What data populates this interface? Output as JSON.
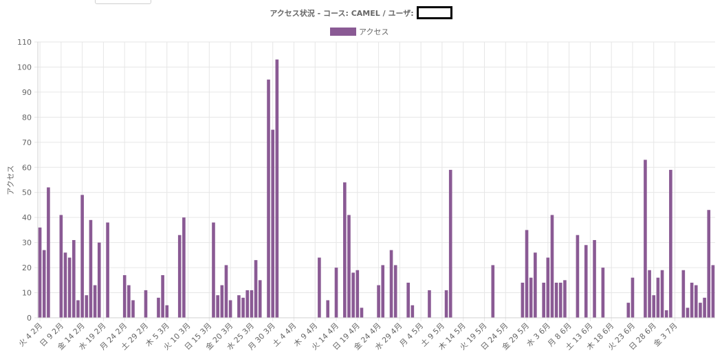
{
  "title": {
    "text": "アクセス状況 - コース: CAMEL / ユーザ:"
  },
  "colors": {
    "bar": "#8a5a94",
    "grid": "#e6e6e6",
    "text": "#666666"
  },
  "chart_data": {
    "type": "bar",
    "title": "アクセス状況 - コース: CAMEL / ユーザ:",
    "ylabel": "アクセス",
    "xlabel": "",
    "ylim": [
      0,
      110
    ],
    "yticks": [
      0,
      10,
      20,
      30,
      40,
      50,
      60,
      70,
      80,
      90,
      100,
      110
    ],
    "legend": {
      "position": "top",
      "entries": [
        "アクセス"
      ]
    },
    "grid": true,
    "x_tick_labels": [
      "火 4 2月",
      "日 9 2月",
      "金 14 2月",
      "水 19 2月",
      "月 24 2月",
      "土 29 2月",
      "木 5 3月",
      "火 10 3月",
      "日 15 3月",
      "金 20 3月",
      "水 25 3月",
      "月 30 3月",
      "土 4 4月",
      "木 9 4月",
      "火 14 4月",
      "日 19 4月",
      "金 24 4月",
      "水 29 4月",
      "月 4 5月",
      "土 9 5月",
      "木 14 5月",
      "火 19 5月",
      "日 24 5月",
      "金 29 5月",
      "水 3 6月",
      "月 8 6月",
      "土 13 6月",
      "木 18 6月",
      "火 23 6月",
      "日 28 6月",
      "金 3 7月"
    ],
    "series": [
      {
        "name": "アクセス",
        "start_date": "2020-02-04",
        "values": [
          36,
          27,
          52,
          0,
          0,
          41,
          26,
          24,
          31,
          7,
          49,
          9,
          39,
          13,
          30,
          0,
          38,
          0,
          0,
          0,
          17,
          13,
          7,
          0,
          0,
          11,
          0,
          0,
          8,
          17,
          5,
          0,
          0,
          33,
          40,
          0,
          0,
          0,
          0,
          0,
          0,
          38,
          9,
          13,
          21,
          7,
          0,
          9,
          8,
          11,
          11,
          23,
          15,
          0,
          95,
          75,
          103,
          0,
          0,
          0,
          0,
          0,
          0,
          0,
          0,
          0,
          24,
          0,
          7,
          0,
          20,
          0,
          54,
          41,
          18,
          19,
          4,
          0,
          0,
          0,
          13,
          21,
          0,
          27,
          21,
          0,
          0,
          14,
          5,
          0,
          0,
          0,
          11,
          0,
          0,
          0,
          11,
          59,
          0,
          0,
          0,
          0,
          0,
          0,
          0,
          0,
          0,
          21,
          0,
          0,
          0,
          0,
          0,
          0,
          14,
          35,
          16,
          26,
          0,
          14,
          24,
          41,
          14,
          14,
          15,
          0,
          0,
          33,
          0,
          29,
          0,
          31,
          0,
          20,
          0,
          0,
          0,
          0,
          0,
          6,
          16,
          0,
          0,
          63,
          19,
          9,
          16,
          19,
          3,
          59,
          0,
          0,
          19,
          4,
          14,
          13,
          6,
          8,
          43,
          21
        ]
      }
    ]
  }
}
